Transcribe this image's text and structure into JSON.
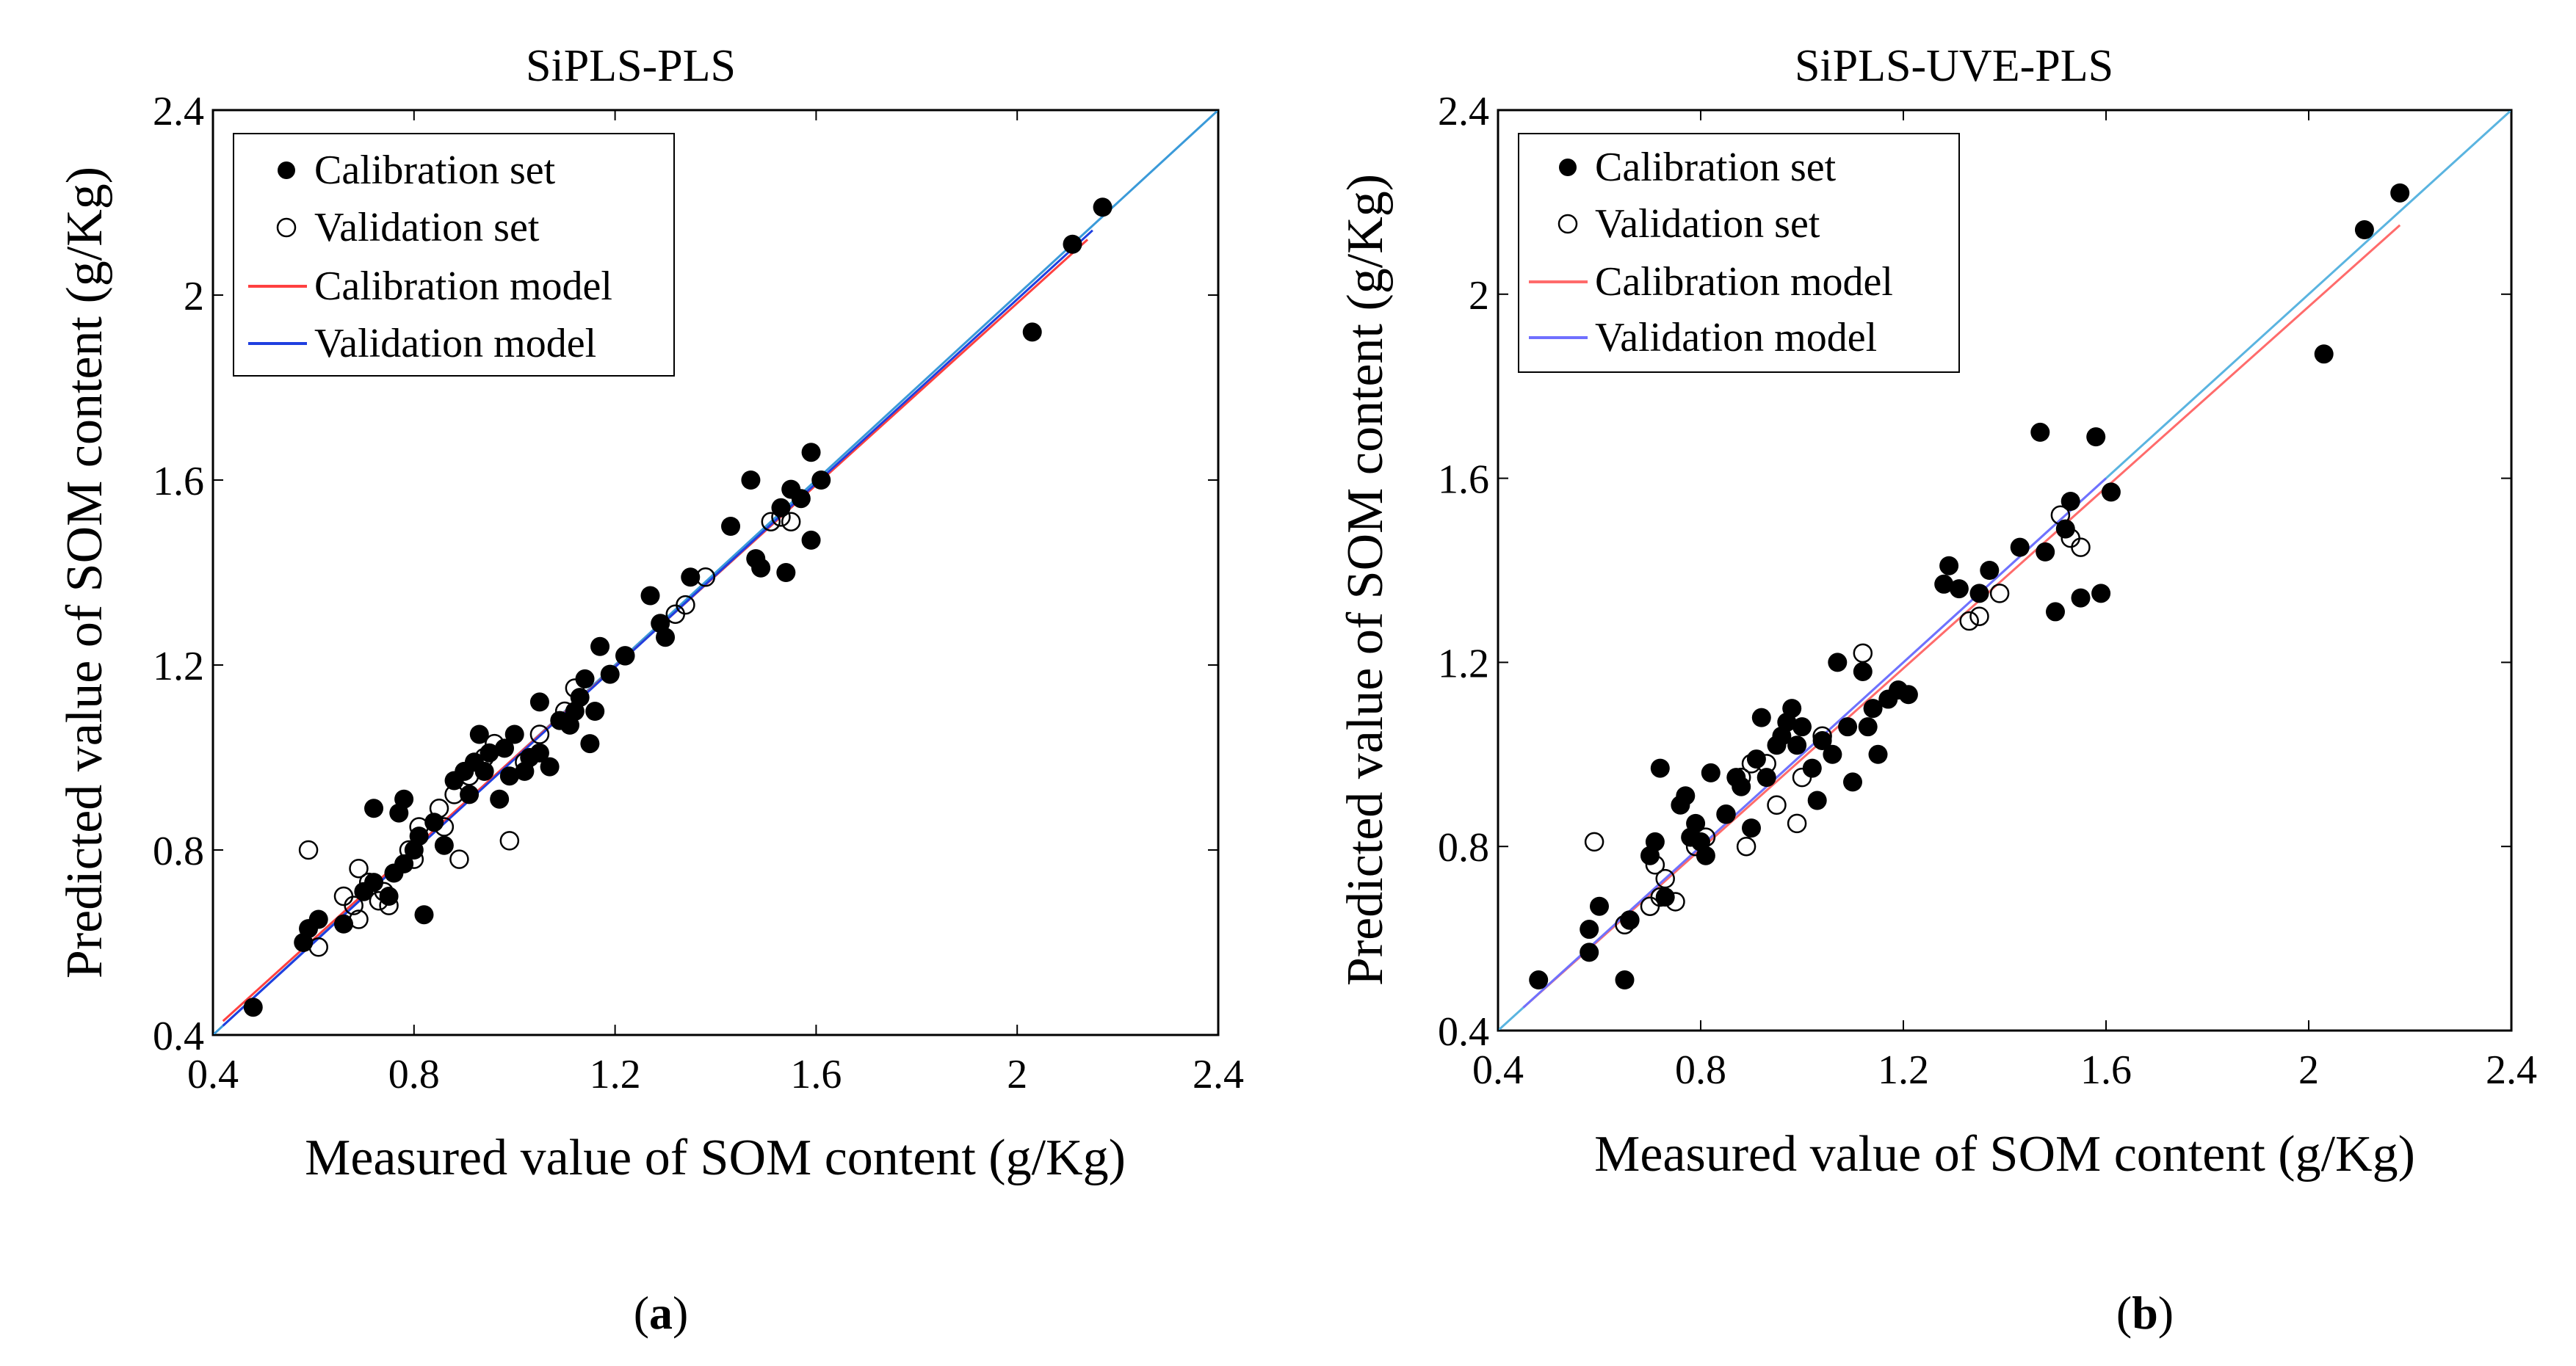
{
  "chart_data": [
    {
      "type": "scatter",
      "panel_label": "a",
      "title": "SiPLS-PLS",
      "xlabel": "Measured value of SOM content (g/Kg)",
      "ylabel": "Predicted value of SOM content (g/Kg)",
      "xlim": [
        0.4,
        2.4
      ],
      "ylim": [
        0.4,
        2.4
      ],
      "xticks": [
        "0.4",
        "0.8",
        "1.2",
        "1.6",
        "2",
        "2.4"
      ],
      "yticks": [
        "0.4",
        "0.8",
        "1.2",
        "1.6",
        "2",
        "2.4"
      ],
      "grid": false,
      "legend_position": "top-left",
      "legend": [
        "Calibration set",
        "Validation set",
        "Calibration model",
        "Validation model"
      ],
      "colors": {
        "calibration_model": "#ff4040",
        "validation_model": "#1f3fe0",
        "identity": "#3a9ad9"
      },
      "identity_line": [
        [
          0.4,
          0.4
        ],
        [
          2.4,
          2.4
        ]
      ],
      "series": [
        {
          "name": "Calibration set",
          "marker": "filled-circle",
          "points": [
            [
              0.48,
              0.46
            ],
            [
              0.58,
              0.6
            ],
            [
              0.59,
              0.63
            ],
            [
              0.61,
              0.65
            ],
            [
              0.66,
              0.64
            ],
            [
              0.7,
              0.71
            ],
            [
              0.72,
              0.73
            ],
            [
              0.72,
              0.89
            ],
            [
              0.75,
              0.7
            ],
            [
              0.76,
              0.75
            ],
            [
              0.77,
              0.88
            ],
            [
              0.78,
              0.91
            ],
            [
              0.78,
              0.77
            ],
            [
              0.8,
              0.8
            ],
            [
              0.81,
              0.83
            ],
            [
              0.82,
              0.66
            ],
            [
              0.84,
              0.86
            ],
            [
              0.86,
              0.81
            ],
            [
              0.88,
              0.95
            ],
            [
              0.9,
              0.97
            ],
            [
              0.91,
              0.92
            ],
            [
              0.92,
              0.99
            ],
            [
              0.93,
              1.05
            ],
            [
              0.94,
              0.97
            ],
            [
              0.95,
              1.01
            ],
            [
              0.97,
              0.91
            ],
            [
              0.98,
              1.02
            ],
            [
              0.99,
              0.96
            ],
            [
              1.0,
              1.05
            ],
            [
              1.02,
              0.97
            ],
            [
              1.03,
              1.0
            ],
            [
              1.05,
              1.12
            ],
            [
              1.05,
              1.01
            ],
            [
              1.07,
              0.98
            ],
            [
              1.09,
              1.08
            ],
            [
              1.11,
              1.07
            ],
            [
              1.12,
              1.1
            ],
            [
              1.13,
              1.13
            ],
            [
              1.14,
              1.17
            ],
            [
              1.15,
              1.03
            ],
            [
              1.16,
              1.1
            ],
            [
              1.17,
              1.24
            ],
            [
              1.19,
              1.18
            ],
            [
              1.22,
              1.22
            ],
            [
              1.27,
              1.35
            ],
            [
              1.29,
              1.29
            ],
            [
              1.3,
              1.26
            ],
            [
              1.35,
              1.39
            ],
            [
              1.43,
              1.5
            ],
            [
              1.47,
              1.6
            ],
            [
              1.48,
              1.43
            ],
            [
              1.49,
              1.41
            ],
            [
              1.53,
              1.54
            ],
            [
              1.54,
              1.4
            ],
            [
              1.55,
              1.58
            ],
            [
              1.57,
              1.56
            ],
            [
              1.59,
              1.47
            ],
            [
              1.59,
              1.66
            ],
            [
              1.61,
              1.6
            ],
            [
              2.03,
              1.92
            ],
            [
              2.11,
              2.11
            ],
            [
              2.17,
              2.19
            ]
          ]
        },
        {
          "name": "Validation set",
          "marker": "open-circle",
          "points": [
            [
              0.59,
              0.8
            ],
            [
              0.61,
              0.59
            ],
            [
              0.66,
              0.7
            ],
            [
              0.68,
              0.68
            ],
            [
              0.69,
              0.76
            ],
            [
              0.69,
              0.65
            ],
            [
              0.71,
              0.73
            ],
            [
              0.73,
              0.69
            ],
            [
              0.74,
              0.71
            ],
            [
              0.75,
              0.68
            ],
            [
              0.79,
              0.8
            ],
            [
              0.8,
              0.78
            ],
            [
              0.81,
              0.85
            ],
            [
              0.85,
              0.89
            ],
            [
              0.86,
              0.85
            ],
            [
              0.88,
              0.92
            ],
            [
              0.89,
              0.78
            ],
            [
              0.91,
              0.96
            ],
            [
              0.94,
              1.0
            ],
            [
              0.96,
              1.03
            ],
            [
              0.99,
              0.82
            ],
            [
              1.02,
              0.99
            ],
            [
              1.05,
              1.05
            ],
            [
              1.1,
              1.1
            ],
            [
              1.12,
              1.15
            ],
            [
              1.22,
              1.22
            ],
            [
              1.32,
              1.31
            ],
            [
              1.34,
              1.33
            ],
            [
              1.38,
              1.39
            ],
            [
              1.51,
              1.51
            ],
            [
              1.53,
              1.52
            ],
            [
              1.55,
              1.51
            ]
          ]
        },
        {
          "name": "Calibration model",
          "line": [
            [
              0.42,
              0.43
            ],
            [
              2.14,
              2.12
            ]
          ]
        },
        {
          "name": "Validation model",
          "line": [
            [
              0.42,
              0.42
            ],
            [
              2.15,
              2.14
            ]
          ]
        }
      ]
    },
    {
      "type": "scatter",
      "panel_label": "b",
      "title": "SiPLS-UVE-PLS",
      "xlabel": "Measured value of SOM content (g/Kg)",
      "ylabel": "Predicted value of SOM content (g/Kg)",
      "xlim": [
        0.4,
        2.4
      ],
      "ylim": [
        0.4,
        2.4
      ],
      "xticks": [
        "0.4",
        "0.8",
        "1.2",
        "1.6",
        "2",
        "2.4"
      ],
      "yticks": [
        "0.4",
        "0.8",
        "1.2",
        "1.6",
        "2",
        "2.4"
      ],
      "grid": false,
      "legend_position": "top-left",
      "legend": [
        "Calibration set",
        "Validation set",
        "Calibration model",
        "Validation model"
      ],
      "colors": {
        "calibration_model": "#ff6b6b",
        "validation_model": "#7070ff",
        "identity": "#5ab4e0"
      },
      "identity_line": [
        [
          0.4,
          0.4
        ],
        [
          2.4,
          2.4
        ]
      ],
      "series": [
        {
          "name": "Calibration set",
          "marker": "filled-circle",
          "points": [
            [
              0.48,
              0.51
            ],
            [
              0.58,
              0.57
            ],
            [
              0.58,
              0.62
            ],
            [
              0.6,
              0.67
            ],
            [
              0.65,
              0.51
            ],
            [
              0.66,
              0.64
            ],
            [
              0.7,
              0.78
            ],
            [
              0.71,
              0.81
            ],
            [
              0.72,
              0.97
            ],
            [
              0.73,
              0.69
            ],
            [
              0.76,
              0.89
            ],
            [
              0.77,
              0.91
            ],
            [
              0.78,
              0.82
            ],
            [
              0.79,
              0.85
            ],
            [
              0.8,
              0.81
            ],
            [
              0.81,
              0.78
            ],
            [
              0.82,
              0.96
            ],
            [
              0.85,
              0.87
            ],
            [
              0.87,
              0.95
            ],
            [
              0.88,
              0.93
            ],
            [
              0.9,
              0.84
            ],
            [
              0.91,
              0.99
            ],
            [
              0.92,
              1.08
            ],
            [
              0.93,
              0.95
            ],
            [
              0.95,
              1.02
            ],
            [
              0.96,
              1.04
            ],
            [
              0.97,
              1.07
            ],
            [
              0.98,
              1.1
            ],
            [
              0.99,
              1.02
            ],
            [
              1.0,
              1.06
            ],
            [
              1.02,
              0.97
            ],
            [
              1.03,
              0.9
            ],
            [
              1.04,
              1.03
            ],
            [
              1.06,
              1.0
            ],
            [
              1.07,
              1.2
            ],
            [
              1.09,
              1.06
            ],
            [
              1.1,
              0.94
            ],
            [
              1.12,
              1.18
            ],
            [
              1.13,
              1.06
            ],
            [
              1.14,
              1.1
            ],
            [
              1.15,
              1.0
            ],
            [
              1.17,
              1.12
            ],
            [
              1.19,
              1.14
            ],
            [
              1.21,
              1.13
            ],
            [
              1.28,
              1.37
            ],
            [
              1.29,
              1.41
            ],
            [
              1.31,
              1.36
            ],
            [
              1.35,
              1.35
            ],
            [
              1.37,
              1.4
            ],
            [
              1.43,
              1.45
            ],
            [
              1.47,
              1.7
            ],
            [
              1.48,
              1.44
            ],
            [
              1.5,
              1.31
            ],
            [
              1.52,
              1.49
            ],
            [
              1.53,
              1.55
            ],
            [
              1.55,
              1.34
            ],
            [
              1.58,
              1.69
            ],
            [
              1.59,
              1.35
            ],
            [
              1.61,
              1.57
            ],
            [
              2.03,
              1.87
            ],
            [
              2.11,
              2.14
            ],
            [
              2.18,
              2.22
            ]
          ]
        },
        {
          "name": "Validation set",
          "marker": "open-circle",
          "points": [
            [
              0.59,
              0.81
            ],
            [
              0.65,
              0.63
            ],
            [
              0.66,
              0.64
            ],
            [
              0.7,
              0.67
            ],
            [
              0.71,
              0.76
            ],
            [
              0.72,
              0.69
            ],
            [
              0.73,
              0.73
            ],
            [
              0.75,
              0.68
            ],
            [
              0.79,
              0.8
            ],
            [
              0.81,
              0.82
            ],
            [
              0.85,
              0.87
            ],
            [
              0.88,
              0.95
            ],
            [
              0.89,
              0.8
            ],
            [
              0.9,
              0.98
            ],
            [
              0.93,
              0.98
            ],
            [
              0.95,
              0.89
            ],
            [
              0.99,
              0.85
            ],
            [
              1.0,
              0.95
            ],
            [
              1.04,
              1.04
            ],
            [
              1.12,
              1.22
            ],
            [
              1.33,
              1.29
            ],
            [
              1.35,
              1.3
            ],
            [
              1.39,
              1.35
            ],
            [
              1.51,
              1.52
            ],
            [
              1.53,
              1.47
            ],
            [
              1.55,
              1.45
            ]
          ]
        },
        {
          "name": "Calibration model",
          "line": [
            [
              0.45,
              0.45
            ],
            [
              2.18,
              2.15
            ]
          ]
        },
        {
          "name": "Validation model",
          "line": [
            [
              0.45,
              0.45
            ],
            [
              1.6,
              1.6
            ]
          ]
        }
      ]
    }
  ]
}
